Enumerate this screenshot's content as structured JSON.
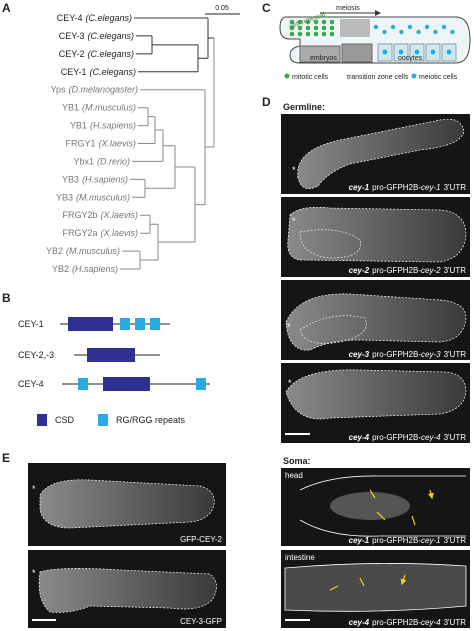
{
  "panel_labels": [
    "A",
    "B",
    "C",
    "D",
    "E"
  ],
  "asterisk": "*",
  "tree": {
    "scale_label": "0.05",
    "leaves": [
      {
        "name": "CEY-4",
        "species": "(C.elegans)"
      },
      {
        "name": "CEY-3",
        "species": "(C.elegans)"
      },
      {
        "name": "CEY-2",
        "species": "(C.elegans)"
      },
      {
        "name": "CEY-1",
        "species": "(C.elegans)"
      },
      {
        "name": "Yps",
        "species": "(D.melanogaster)"
      },
      {
        "name": "YB1",
        "species": "(M.musculus)"
      },
      {
        "name": "YB1",
        "species": "(H.sapiens)"
      },
      {
        "name": "FRGY1",
        "species": "(X.laevis)"
      },
      {
        "name": "Ybx1",
        "species": "(D.rerio)"
      },
      {
        "name": "YB3",
        "species": "(H.sapiens)"
      },
      {
        "name": "YB3",
        "species": "(M.musculus)"
      },
      {
        "name": "FRGY2b",
        "species": "(X.laevis)"
      },
      {
        "name": "FRGY2a",
        "species": "(X.laevis)"
      },
      {
        "name": "YB2",
        "species": "(M.musculus)"
      },
      {
        "name": "YB2",
        "species": "(H.sapiens)"
      }
    ]
  },
  "domains": {
    "rows": [
      "CEY-1",
      "CEY-2,-3",
      "CEY-4"
    ],
    "legend": [
      "CSD",
      "RG/RGG repeats"
    ]
  },
  "diagram": {
    "labels": [
      "self-renewal",
      "meiosis",
      "embryos",
      "oocytes"
    ],
    "legend": [
      "mitotic cells",
      "transition zone cells",
      "meiotic cells"
    ]
  },
  "germline": {
    "title": "Germline:",
    "captions": [
      {
        "gene": "cey-1",
        "construct": "pro-GFPH2B-",
        "utr_gene": "cey-1",
        "utr": "3'UTR"
      },
      {
        "gene": "cey-2",
        "construct": "pro-GFPH2B-",
        "utr_gene": "cey-2",
        "utr": "3'UTR"
      },
      {
        "gene": "cey-3",
        "construct": "pro-GFPH2B-",
        "utr_gene": "cey-3",
        "utr": "3'UTR"
      },
      {
        "gene": "cey-4",
        "construct": "pro-GFPH2B-",
        "utr_gene": "cey-4",
        "utr": "3'UTR"
      }
    ]
  },
  "soma": {
    "title": "Soma:",
    "tags": [
      "head",
      "intestine"
    ],
    "captions": [
      {
        "gene": "cey-1",
        "construct": "pro-GFPH2B-",
        "utr_gene": "cey-1",
        "utr": "3'UTR"
      },
      {
        "gene": "cey-4",
        "construct": "pro-GFPH2B-",
        "utr_gene": "cey-4",
        "utr": "3'UTR"
      }
    ]
  },
  "reporters": {
    "captions": [
      "GFP-CEY-2",
      "CEY-3-GFP"
    ]
  }
}
